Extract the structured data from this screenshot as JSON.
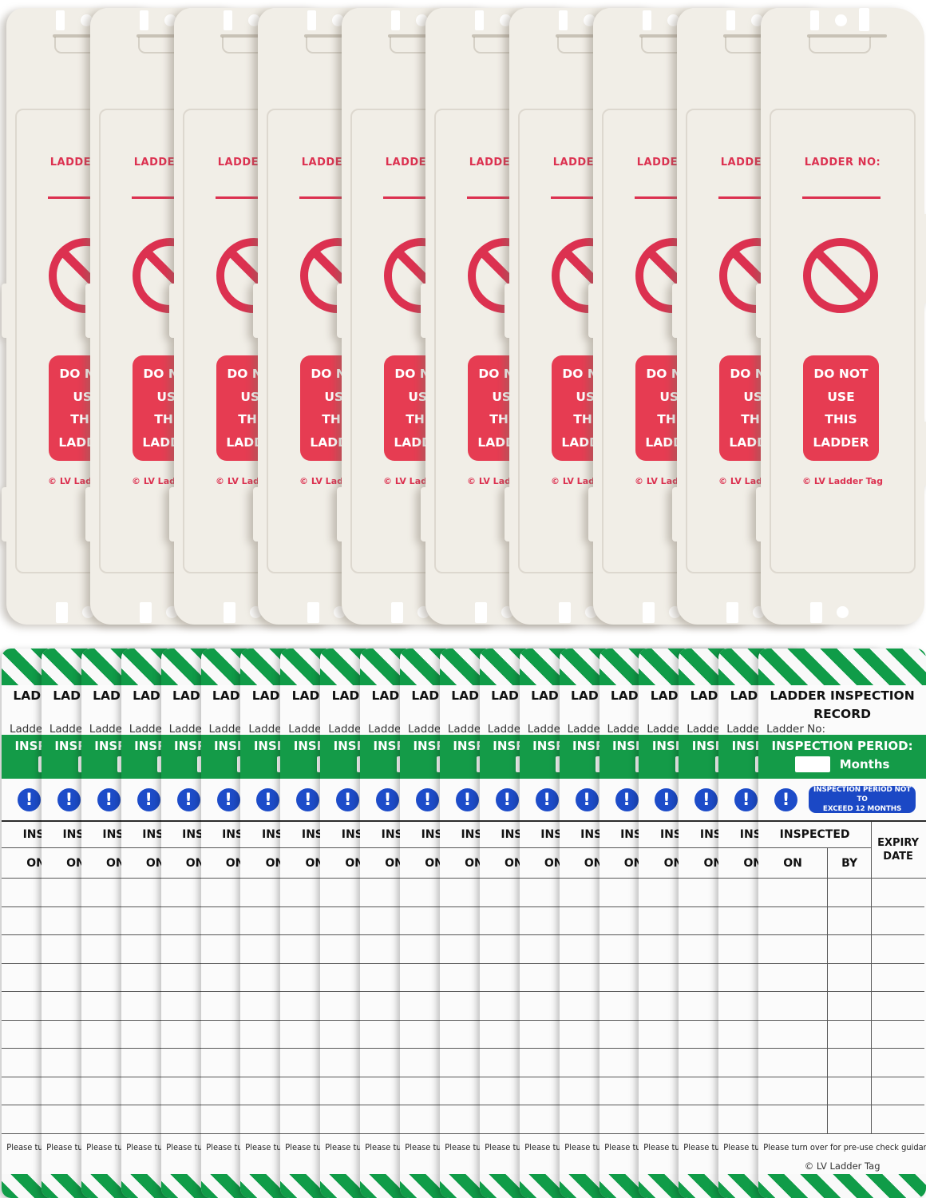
{
  "colors": {
    "holder_body": "#f1eee7",
    "red_accent": "#dc3150",
    "red_box": "#e63c52",
    "green_stripe": "#109c48",
    "green_bar": "#149b48",
    "blue_icon": "#1d4cc9",
    "blue_badge": "#1b48c5",
    "card_bg": "#fbfbfb",
    "line_color": "#565656"
  },
  "holders": {
    "count": 10,
    "ladder_no_label": "LADDER NO:",
    "prohibition_icon": "no-entry-prohibition-icon",
    "warning_lines": [
      "DO NOT",
      "USE",
      "THIS",
      "LADDER"
    ],
    "copyright": "© LV Ladder Tag"
  },
  "cards": {
    "count": 20,
    "title": "LADDER INSPECTION RECORD",
    "ladder_no_label": "Ladder No:",
    "ladder_no_value": "",
    "inspection_period_label": "INSPECTION PERIOD:",
    "months_value": "",
    "months_label": "Months",
    "notice_icon": "exclamation-circle-icon",
    "notice_lines": [
      "INSPECTION PERIOD NOT TO",
      "EXCEED 12 MONTHS"
    ],
    "table": {
      "inspected_header": "INSPECTED",
      "on_header": "ON",
      "by_header": "BY",
      "expiry_header": "EXPIRY DATE",
      "empty_row_count": 9
    },
    "footer_note": "Please turn over for pre-use check guidance",
    "copyright": "© LV Ladder Tag"
  }
}
